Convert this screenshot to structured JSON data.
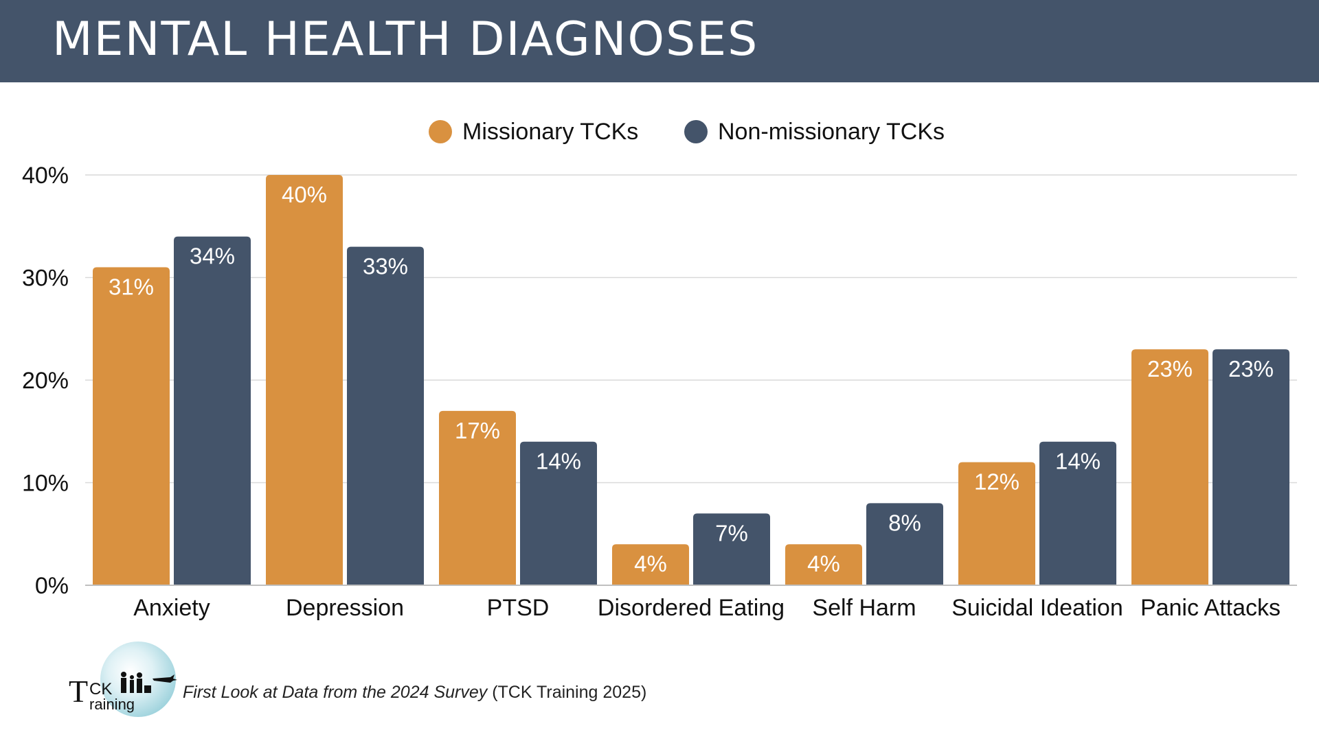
{
  "header": {
    "title": "MENTAL HEALTH DIAGNOSES"
  },
  "colors": {
    "header_bg": "#44546a",
    "missionary": "#d99140",
    "non_missionary": "#44546a",
    "grid": "#d9d9d9"
  },
  "chart_data": {
    "type": "bar",
    "categories": [
      "Anxiety",
      "Depression",
      "PTSD",
      "Disordered Eating",
      "Self Harm",
      "Suicidal Ideation",
      "Panic Attacks"
    ],
    "series": [
      {
        "name": "Missionary TCKs",
        "values": [
          31,
          40,
          17,
          4,
          4,
          12,
          23
        ],
        "labels": [
          "31%",
          "40%",
          "17%",
          "4%",
          "4%",
          "12%",
          "23%"
        ],
        "color": "#d99140"
      },
      {
        "name": "Non-missionary TCKs",
        "values": [
          34,
          33,
          14,
          7,
          8,
          14,
          23
        ],
        "labels": [
          "34%",
          "33%",
          "14%",
          "7%",
          "8%",
          "14%",
          "23%"
        ],
        "color": "#44546a"
      }
    ],
    "ylim": [
      0,
      40
    ],
    "yticks": [
      0,
      10,
      20,
      30,
      40
    ],
    "ytick_labels": [
      "0%",
      "10%",
      "20%",
      "30%",
      "40%"
    ],
    "grid": true,
    "legend": "top-center"
  },
  "footer": {
    "logo_text_t": "T",
    "logo_text_ck": "CK",
    "logo_text_raining": "raining",
    "citation_italic": "First Look at Data from the 2024 Survey",
    "citation_rest": " (TCK Training 2025)"
  }
}
